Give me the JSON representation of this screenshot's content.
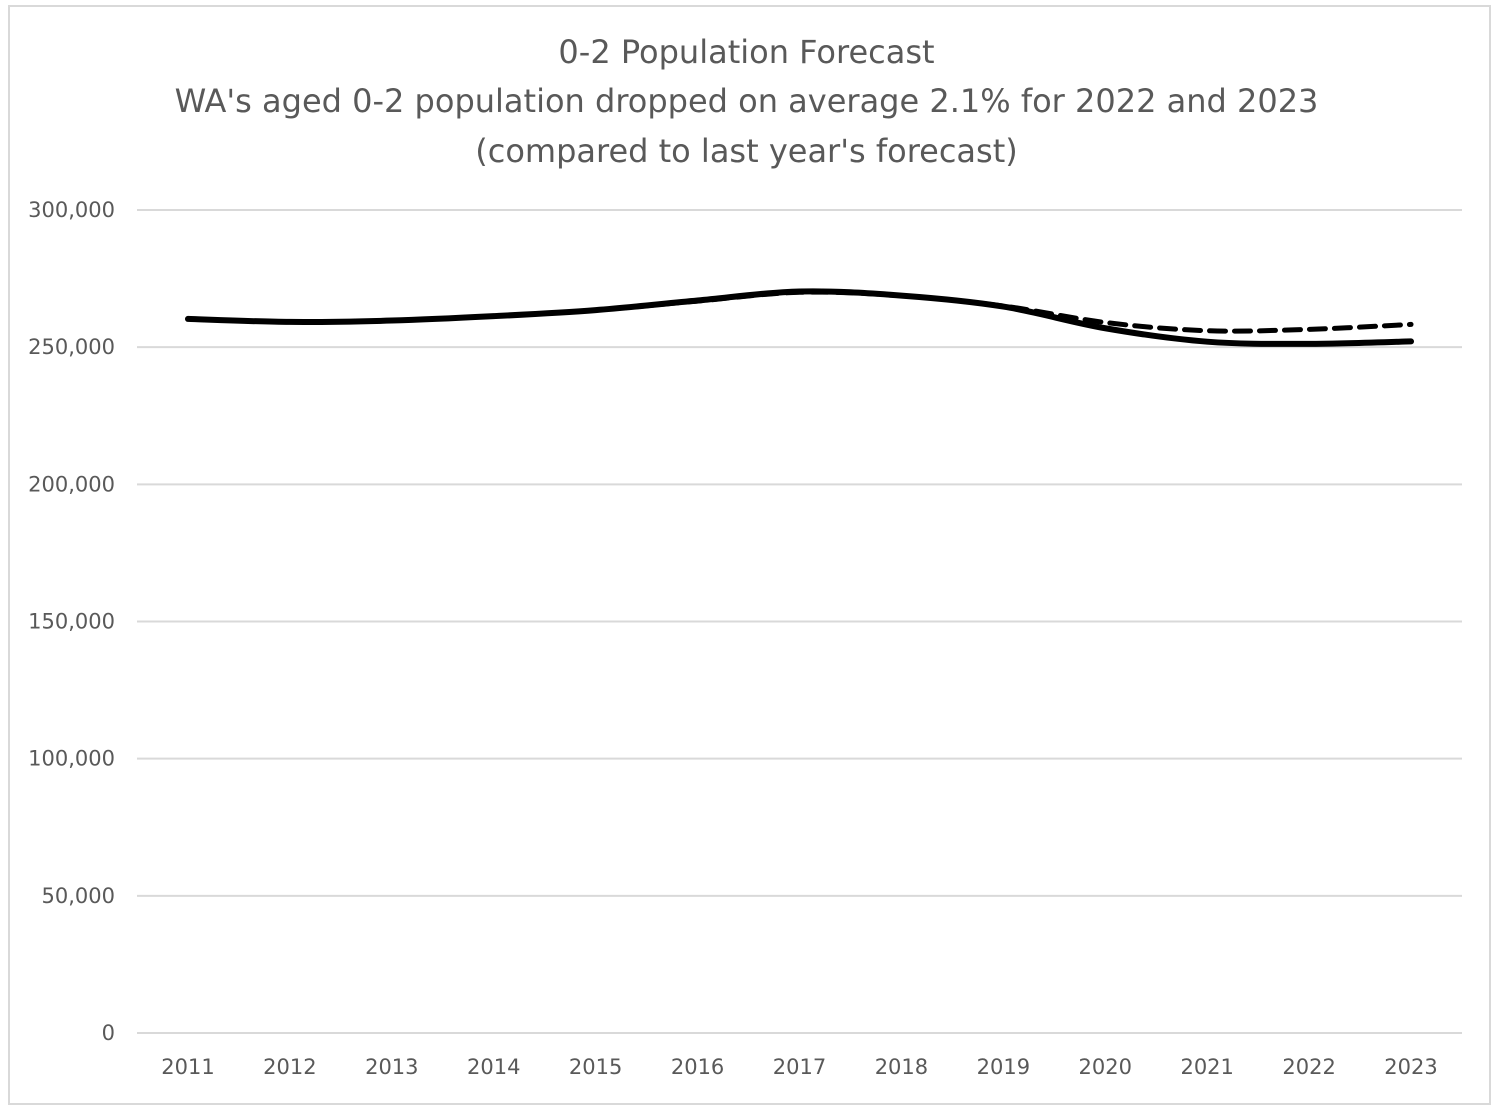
{
  "chart_data": {
    "type": "line",
    "title": "0-2 Population Forecast",
    "subtitle_lines": [
      "WA's aged 0-2 population dropped on average 2.1% for 2022 and 2023",
      "(compared to last year's forecast)"
    ],
    "xlabel": "",
    "ylabel": "",
    "categories": [
      "2011",
      "2012",
      "2013",
      "2014",
      "2015",
      "2016",
      "2017",
      "2018",
      "2019",
      "2020",
      "2021",
      "2022",
      "2023"
    ],
    "y_ticks": [
      0,
      50000,
      100000,
      150000,
      200000,
      250000,
      300000
    ],
    "y_tick_labels": [
      "0",
      "50,000",
      "100,000",
      "150,000",
      "200,000",
      "250,000",
      "300,000"
    ],
    "ylim": [
      0,
      300000
    ],
    "grid": true,
    "legend": "none",
    "series": [
      {
        "style": "dashed",
        "color": "#000000",
        "values": [
          260300,
          259200,
          259700,
          261300,
          263500,
          266800,
          270000,
          268800,
          265000,
          259000,
          256000,
          256500,
          258300
        ]
      },
      {
        "style": "solid",
        "color": "#000000",
        "values": [
          260300,
          259200,
          259700,
          261300,
          263500,
          267000,
          270300,
          268800,
          264800,
          256900,
          252000,
          251200,
          252100
        ]
      }
    ],
    "colors": {
      "gridline": "#d9d9d9",
      "text": "#595959",
      "border": "#d9d9d9"
    }
  }
}
